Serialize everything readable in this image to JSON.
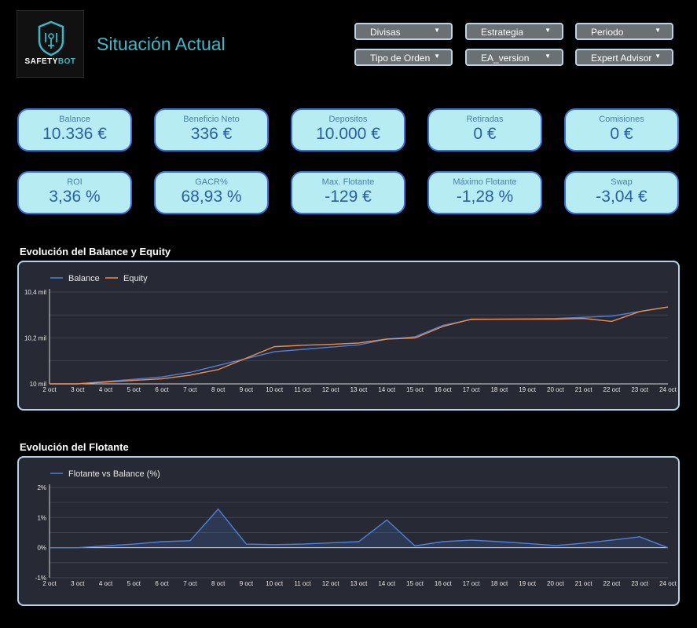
{
  "logo": {
    "text_main": "SAFETY",
    "text_accent": "BOT"
  },
  "page_title": "Situación Actual",
  "filters": [
    {
      "label": "Divisas"
    },
    {
      "label": "Estrategia"
    },
    {
      "label": "Periodo"
    },
    {
      "label": "Tipo de Orden"
    },
    {
      "label": "EA_version"
    },
    {
      "label": "Expert Advisor"
    }
  ],
  "kpis": [
    {
      "label": "Balance",
      "value": "10.336 €"
    },
    {
      "label": "Beneficio Neto",
      "value": "336 €"
    },
    {
      "label": "Depositos",
      "value": "10.000 €"
    },
    {
      "label": "Retiradas",
      "value": "0 €"
    },
    {
      "label": "Comisiones",
      "value": "0 €"
    },
    {
      "label": "ROI",
      "value": "3,36 %"
    },
    {
      "label": "GACR%",
      "value": "68,93 %"
    },
    {
      "label": "Max. Flotante",
      "value": "-129 €"
    },
    {
      "label": "Máximo Flotante",
      "value": "-1,28 %"
    },
    {
      "label": "Swap",
      "value": "-3,04 €"
    }
  ],
  "sections": {
    "balance_title": "Evolución del Balance y Equity",
    "flotante_title": "Evolución del Flotante"
  },
  "colors": {
    "balance": "#4f7fdc",
    "equity": "#f08c4a",
    "flotante": "#4f7fdc",
    "accent": "#3bb9c8"
  },
  "chart_data": [
    {
      "type": "line",
      "title": "Evolución del Balance y Equity",
      "categories": [
        "2 oct",
        "3 oct",
        "4 oct",
        "5 oct",
        "6 oct",
        "7 oct",
        "8 oct",
        "9 oct",
        "10 oct",
        "11 oct",
        "12 oct",
        "13 oct",
        "14 oct",
        "15 oct",
        "16 oct",
        "17 oct",
        "18 oct",
        "19 oct",
        "20 oct",
        "21 oct",
        "22 oct",
        "23 oct",
        "24 oct"
      ],
      "series": [
        {
          "name": "Balance",
          "values": [
            10000,
            10000,
            10010,
            10020,
            10030,
            10050,
            10080,
            10110,
            10140,
            10150,
            10160,
            10170,
            10195,
            10205,
            10255,
            10280,
            10282,
            10283,
            10285,
            10290,
            10295,
            10315,
            10335
          ]
        },
        {
          "name": "Equity",
          "values": [
            10000,
            10000,
            10008,
            10015,
            10022,
            10038,
            10062,
            10112,
            10162,
            10168,
            10172,
            10178,
            10195,
            10200,
            10250,
            10282,
            10282,
            10282,
            10282,
            10285,
            10272,
            10315,
            10335
          ]
        }
      ],
      "y_ticks": [
        "10 mil",
        "10,2 mil",
        "10,4 mil"
      ],
      "ylim": [
        10000,
        10400
      ]
    },
    {
      "type": "area",
      "title": "Evolución del Flotante",
      "categories": [
        "2 oct",
        "3 oct",
        "4 oct",
        "5 oct",
        "6 oct",
        "7 oct",
        "8 oct",
        "9 oct",
        "10 oct",
        "11 oct",
        "12 oct",
        "13 oct",
        "14 oct",
        "15 oct",
        "16 oct",
        "17 oct",
        "18 oct",
        "19 oct",
        "20 oct",
        "21 oct",
        "22 oct",
        "23 oct",
        "24 oct"
      ],
      "series": [
        {
          "name": "Flotante vs Balance (%)",
          "values": [
            0.0,
            0.0,
            0.06,
            0.12,
            0.2,
            0.23,
            1.28,
            0.12,
            0.1,
            0.12,
            0.16,
            0.2,
            0.92,
            0.06,
            0.2,
            0.25,
            0.2,
            0.14,
            0.07,
            0.15,
            0.25,
            0.36,
            0.0
          ]
        }
      ],
      "y_ticks": [
        "-1%",
        "0%",
        "1%",
        "2%"
      ],
      "ylim": [
        -1,
        2
      ]
    }
  ]
}
